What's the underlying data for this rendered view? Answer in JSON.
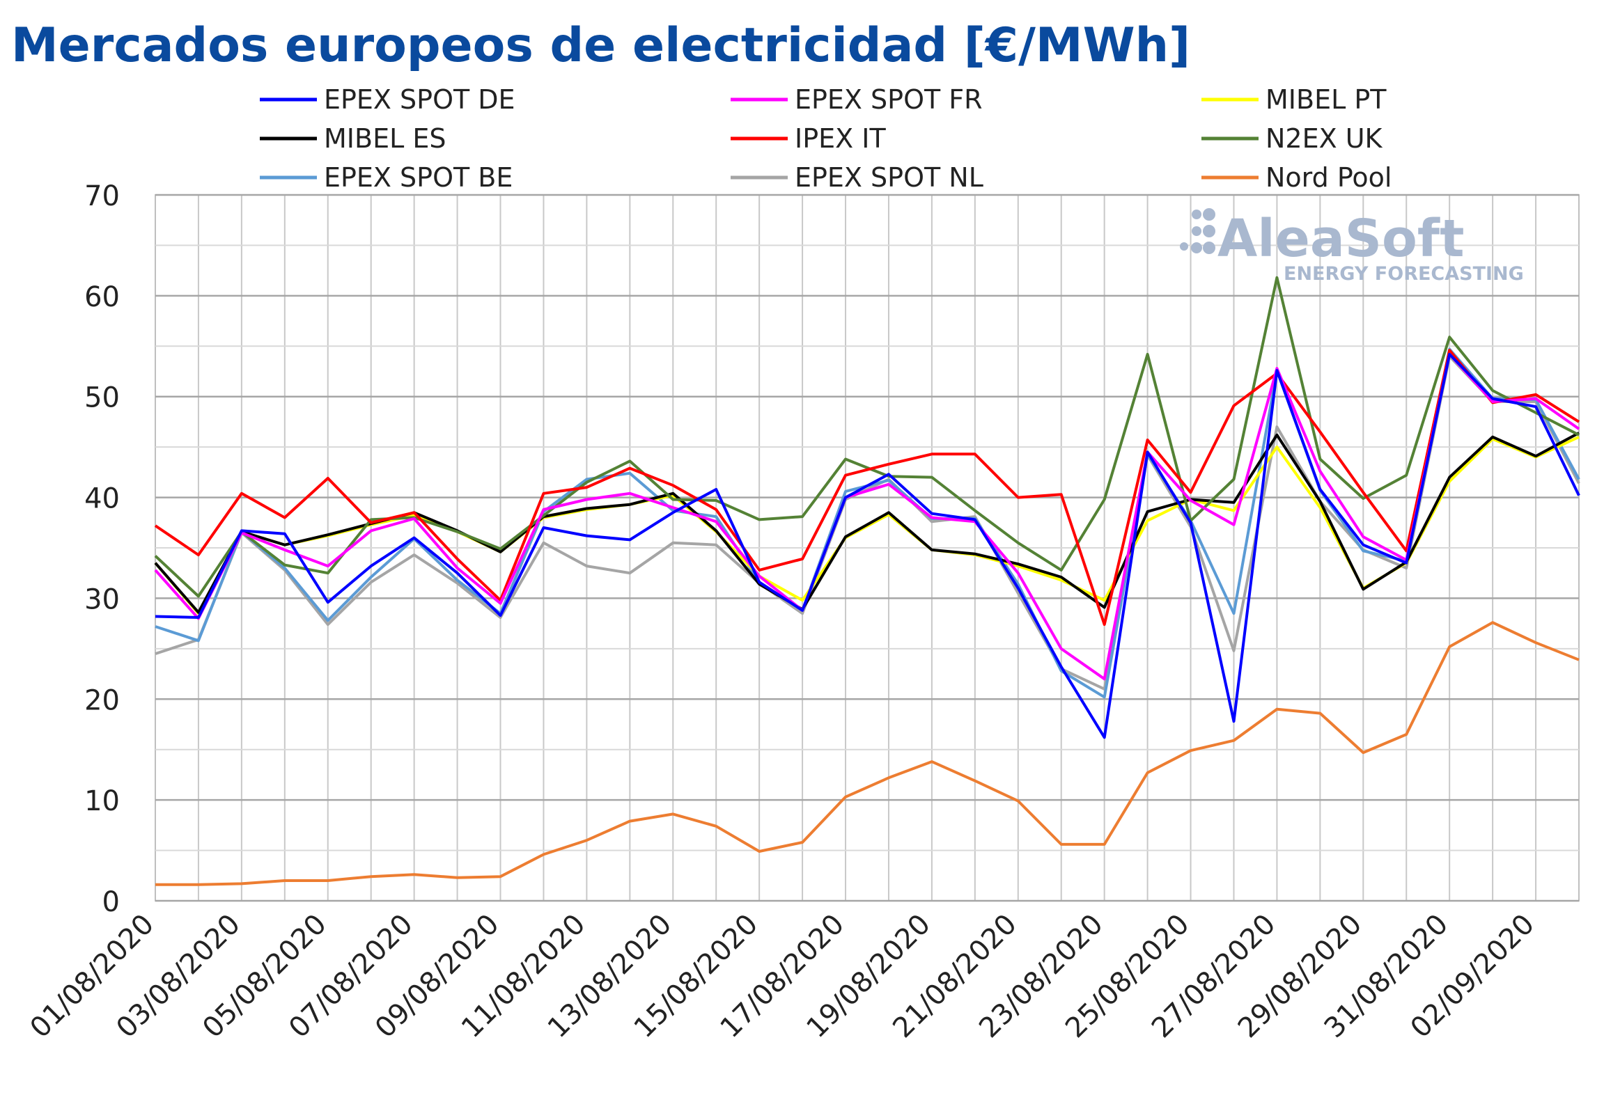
{
  "chart_data": {
    "type": "line",
    "title": "Mercados europeos de electricidad [€/MWh]",
    "ylim": [
      0,
      70
    ],
    "yticks": [
      0,
      10,
      20,
      30,
      40,
      50,
      60,
      70
    ],
    "grid": true,
    "legend_position": "top",
    "x": [
      "01/08/2020",
      "02/08/2020",
      "03/08/2020",
      "04/08/2020",
      "05/08/2020",
      "06/08/2020",
      "07/08/2020",
      "08/08/2020",
      "09/08/2020",
      "10/08/2020",
      "11/08/2020",
      "12/08/2020",
      "13/08/2020",
      "14/08/2020",
      "15/08/2020",
      "16/08/2020",
      "17/08/2020",
      "18/08/2020",
      "19/08/2020",
      "20/08/2020",
      "21/08/2020",
      "22/08/2020",
      "23/08/2020",
      "24/08/2020",
      "25/08/2020",
      "26/08/2020",
      "27/08/2020",
      "28/08/2020",
      "29/08/2020",
      "30/08/2020",
      "31/08/2020",
      "01/09/2020",
      "02/09/2020",
      "03/09/2020"
    ],
    "xtick_labels": [
      "01/08/2020",
      "03/08/2020",
      "05/08/2020",
      "07/08/2020",
      "09/08/2020",
      "11/08/2020",
      "13/08/2020",
      "15/08/2020",
      "17/08/2020",
      "19/08/2020",
      "21/08/2020",
      "23/08/2020",
      "25/08/2020",
      "27/08/2020",
      "29/08/2020",
      "31/08/2020",
      "02/09/2020"
    ],
    "series": [
      {
        "name": "EPEX SPOT DE",
        "color": "#0000ff",
        "values": [
          28.2,
          28.1,
          36.7,
          36.4,
          29.6,
          33.2,
          36.0,
          32.5,
          28.3,
          37.0,
          36.2,
          35.8,
          38.5,
          40.8,
          31.6,
          28.8,
          40.0,
          42.3,
          38.4,
          37.8,
          31.0,
          23.2,
          16.2,
          44.5,
          37.5,
          17.8,
          52.6,
          40.8,
          35.3,
          33.5,
          54.2,
          49.8,
          49.0,
          40.2
        ]
      },
      {
        "name": "EPEX SPOT FR",
        "color": "#ff00ff",
        "values": [
          32.8,
          28.0,
          36.5,
          34.8,
          33.2,
          36.7,
          37.9,
          33.0,
          29.5,
          38.8,
          39.8,
          40.4,
          39.0,
          37.6,
          32.2,
          28.8,
          40.0,
          41.3,
          38.0,
          37.6,
          32.5,
          25.0,
          22.0,
          44.5,
          39.7,
          37.3,
          52.8,
          42.6,
          36.1,
          33.8,
          54.2,
          49.5,
          49.8,
          46.8
        ]
      },
      {
        "name": "MIBEL PT",
        "color": "#ffff00",
        "values": [
          33.5,
          28.5,
          36.6,
          35.3,
          36.2,
          37.3,
          38.2,
          36.6,
          34.6,
          38.0,
          38.8,
          39.3,
          40.2,
          36.6,
          32.2,
          29.8,
          36.0,
          38.3,
          34.8,
          34.3,
          33.2,
          31.8,
          29.8,
          37.7,
          39.8,
          38.7,
          45.0,
          39.0,
          31.0,
          33.5,
          41.6,
          45.8,
          44.0,
          46.0
        ]
      },
      {
        "name": "MIBEL ES",
        "color": "#000000",
        "values": [
          33.5,
          28.6,
          36.6,
          35.3,
          36.3,
          37.4,
          38.5,
          36.7,
          34.6,
          38.1,
          38.9,
          39.3,
          40.4,
          36.7,
          31.4,
          28.9,
          36.1,
          38.5,
          34.8,
          34.4,
          33.4,
          32.1,
          29.1,
          38.6,
          39.8,
          39.5,
          46.2,
          39.6,
          30.9,
          33.6,
          42.0,
          46.0,
          44.1,
          46.4
        ]
      },
      {
        "name": "IPEX IT",
        "color": "#ff0000",
        "values": [
          37.2,
          34.3,
          40.4,
          38.0,
          41.9,
          37.5,
          38.5,
          33.9,
          29.8,
          40.4,
          41.0,
          42.9,
          41.2,
          38.8,
          32.8,
          33.9,
          42.2,
          43.3,
          44.3,
          44.3,
          40.0,
          40.3,
          27.4,
          45.7,
          40.5,
          49.1,
          52.3,
          46.5,
          40.5,
          34.7,
          54.6,
          49.4,
          50.2,
          47.5
        ]
      },
      {
        "name": "N2EX UK",
        "color": "#548235",
        "values": [
          34.2,
          30.2,
          36.6,
          33.3,
          32.5,
          37.8,
          38.0,
          36.6,
          34.9,
          38.2,
          41.5,
          43.6,
          39.8,
          39.7,
          37.8,
          38.1,
          43.8,
          42.1,
          42.0,
          38.7,
          35.5,
          32.8,
          39.8,
          54.2,
          37.7,
          41.8,
          61.8,
          43.8,
          39.9,
          42.2,
          55.9,
          50.6,
          48.4,
          46.2
        ]
      },
      {
        "name": "EPEX SPOT BE",
        "color": "#5b9bd5",
        "values": [
          27.2,
          25.8,
          36.6,
          33.0,
          27.8,
          32.1,
          35.9,
          31.8,
          28.5,
          38.6,
          41.8,
          42.4,
          38.7,
          38.1,
          31.6,
          28.8,
          40.6,
          41.7,
          37.9,
          37.9,
          31.4,
          22.8,
          20.2,
          44.3,
          37.7,
          28.5,
          52.6,
          40.7,
          34.7,
          33.7,
          54.7,
          49.8,
          49.7,
          41.8
        ]
      },
      {
        "name": "EPEX SPOT NL",
        "color": "#a5a5a5",
        "values": [
          24.5,
          25.9,
          36.5,
          32.8,
          27.4,
          31.6,
          34.3,
          31.5,
          28.1,
          35.5,
          33.2,
          32.5,
          35.5,
          35.3,
          31.5,
          28.5,
          39.8,
          41.8,
          37.6,
          38.1,
          30.5,
          23.0,
          21.0,
          44.2,
          37.1,
          24.8,
          47.0,
          39.6,
          34.8,
          33.0,
          54.0,
          49.5,
          49.5,
          41.4
        ]
      },
      {
        "name": "Nord Pool",
        "color": "#ed7d31",
        "values": [
          1.6,
          1.6,
          1.7,
          2.0,
          2.0,
          2.4,
          2.6,
          2.3,
          2.4,
          4.6,
          6.0,
          7.9,
          8.6,
          7.4,
          4.9,
          5.8,
          10.3,
          12.2,
          13.8,
          11.9,
          9.9,
          5.6,
          5.6,
          12.7,
          14.9,
          15.9,
          19.0,
          18.6,
          14.7,
          16.5,
          25.2,
          27.6,
          25.6,
          23.9
        ]
      }
    ]
  },
  "watermark": {
    "brand": "AleaSoft",
    "tagline": "ENERGY FORECASTING",
    "color": "#a9b8cf"
  }
}
